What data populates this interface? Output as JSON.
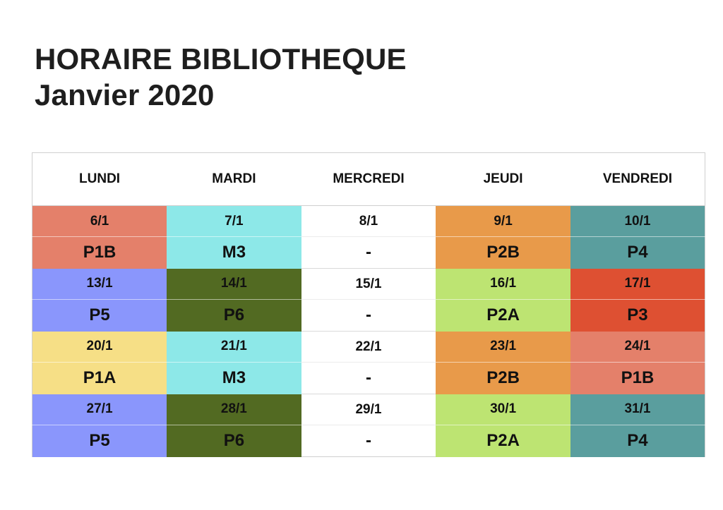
{
  "title": {
    "line1": "HORAIRE BIBLIOTHEQUE",
    "line2": "Janvier 2020"
  },
  "days": [
    "LUNDI",
    "MARDI",
    "MERCREDI",
    "JEUDI",
    "VENDREDI"
  ],
  "colors": {
    "P1B": "#e4806a",
    "M3": "#8de8e8",
    "P2B": "#e89a4a",
    "P4": "#5a9e9e",
    "P5": "#8a96fc",
    "P6": "#526a22",
    "P2A": "#bde472",
    "P3": "#de5032",
    "P1A": "#f6df86",
    "blank": "#ffffff"
  },
  "weeks": [
    [
      {
        "date": "6/1",
        "code": "P1B"
      },
      {
        "date": "7/1",
        "code": "M3"
      },
      {
        "date": "8/1",
        "code": "-"
      },
      {
        "date": "9/1",
        "code": "P2B"
      },
      {
        "date": "10/1",
        "code": "P4"
      }
    ],
    [
      {
        "date": "13/1",
        "code": "P5"
      },
      {
        "date": "14/1",
        "code": "P6"
      },
      {
        "date": "15/1",
        "code": "-"
      },
      {
        "date": "16/1",
        "code": "P2A"
      },
      {
        "date": "17/1",
        "code": "P3"
      }
    ],
    [
      {
        "date": "20/1",
        "code": "P1A"
      },
      {
        "date": "21/1",
        "code": "M3"
      },
      {
        "date": "22/1",
        "code": "-"
      },
      {
        "date": "23/1",
        "code": "P2B"
      },
      {
        "date": "24/1",
        "code": "P1B"
      }
    ],
    [
      {
        "date": "27/1",
        "code": "P5"
      },
      {
        "date": "28/1",
        "code": "P6"
      },
      {
        "date": "29/1",
        "code": "-"
      },
      {
        "date": "30/1",
        "code": "P2A"
      },
      {
        "date": "31/1",
        "code": "P4"
      }
    ]
  ]
}
